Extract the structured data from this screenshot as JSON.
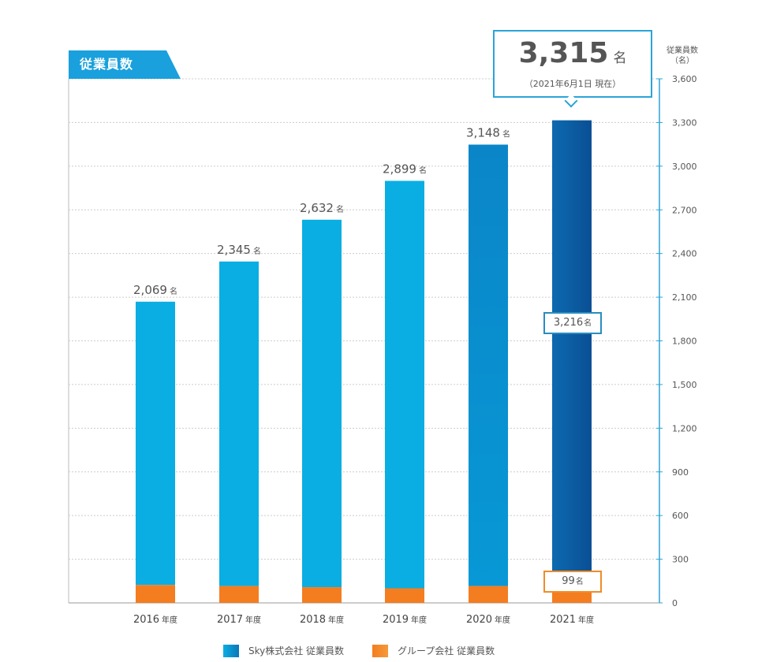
{
  "panel": {
    "tag_label": "従業員数"
  },
  "highlight": {
    "total_value": "3,315",
    "unit": "名",
    "as_of": "（2021年6月1日 現在）"
  },
  "y_axis_unit": {
    "line1": "従業員数",
    "line2": "（名）"
  },
  "breakdown_2021": {
    "sky_value": "3,216",
    "group_value": "99",
    "unit": "名"
  },
  "colors": {
    "sky_bar": "#0aaee2",
    "sky_bar_2021_top": "#0c76b8",
    "group_bar": "#f47d20",
    "text": "#555555",
    "grid": "#cccccc",
    "axis": "#2aa4d8"
  },
  "chart_data": {
    "type": "bar",
    "stacked": true,
    "categories": [
      "2016",
      "2017",
      "2018",
      "2019",
      "2020",
      "2021"
    ],
    "category_suffix": "年度",
    "series": [
      {
        "name": "Sky株式会社 従業員数",
        "values": [
          1946,
          2229,
          2524,
          2799,
          3032,
          3216
        ]
      },
      {
        "name": "グループ会社 従業員数",
        "values": [
          123,
          116,
          108,
          100,
          116,
          99
        ]
      }
    ],
    "totals": [
      2069,
      2345,
      2632,
      2899,
      3148,
      3315
    ],
    "total_labels": [
      "2,069",
      "2,345",
      "2,632",
      "2,899",
      "3,148",
      ""
    ],
    "total_unit": "名",
    "yticks": [
      "0",
      "300",
      "600",
      "900",
      "1,200",
      "1,500",
      "1,800",
      "2,100",
      "2,400",
      "2,700",
      "3,000",
      "3,300",
      "3,600"
    ],
    "ylim": [
      0,
      3600
    ],
    "y_axis_side": "right",
    "grid": true,
    "legend_position": "bottom"
  }
}
